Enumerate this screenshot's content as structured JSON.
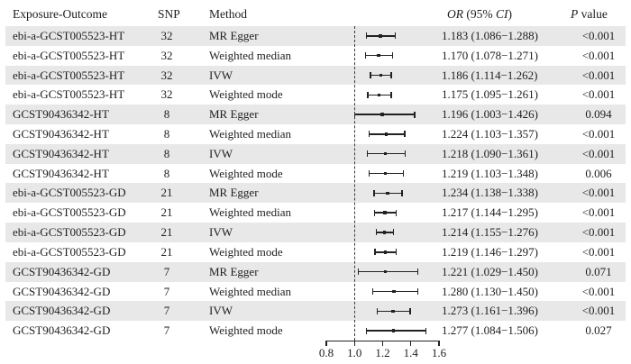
{
  "colors": {
    "band": "#e8e8e8",
    "ink": "#1e1e1e",
    "plot": "#222222"
  },
  "header": {
    "exposure": "Exposure-Outcome",
    "snp": "SNP",
    "method": "Method",
    "or_parts": [
      {
        "t": "OR",
        "i": 1
      },
      {
        "t": " (95% ",
        "i": 0
      },
      {
        "t": "CI",
        "i": 1
      },
      {
        "t": ")",
        "i": 0
      }
    ],
    "p_parts": [
      {
        "t": "P",
        "i": 1
      },
      {
        "t": " value",
        "i": 0
      }
    ]
  },
  "chart_data": {
    "type": "scatter",
    "variant": "forest-plot",
    "title": "",
    "xlabel": "",
    "x_axis": {
      "min": 0.8,
      "max": 1.6,
      "ticks": [
        0.8,
        1.0,
        1.2,
        1.4,
        1.6
      ],
      "reference_line": 1.0
    },
    "rows": [
      {
        "exposure": "ebi-a-GCST005523-HT",
        "snp": "32",
        "method": "MR Egger",
        "or": 1.183,
        "ci_low": 1.086,
        "ci_high": 1.288,
        "or_ci_text": "1.183 (1.086−1.288)",
        "p_value": "<0.001"
      },
      {
        "exposure": "ebi-a-GCST005523-HT",
        "snp": "32",
        "method": "Weighted median",
        "or": 1.17,
        "ci_low": 1.078,
        "ci_high": 1.271,
        "or_ci_text": "1.170 (1.078−1.271)",
        "p_value": "<0.001"
      },
      {
        "exposure": "ebi-a-GCST005523-HT",
        "snp": "32",
        "method": "IVW",
        "or": 1.186,
        "ci_low": 1.114,
        "ci_high": 1.262,
        "or_ci_text": "1.186 (1.114−1.262)",
        "p_value": "<0.001"
      },
      {
        "exposure": "ebi-a-GCST005523-HT",
        "snp": "32",
        "method": "Weighted mode",
        "or": 1.175,
        "ci_low": 1.095,
        "ci_high": 1.261,
        "or_ci_text": "1.175 (1.095−1.261)",
        "p_value": "<0.001"
      },
      {
        "exposure": "GCST90436342-HT",
        "snp": "8",
        "method": "MR Egger",
        "or": 1.196,
        "ci_low": 1.003,
        "ci_high": 1.426,
        "or_ci_text": "1.196 (1.003−1.426)",
        "p_value": "0.094"
      },
      {
        "exposure": "GCST90436342-HT",
        "snp": "8",
        "method": "Weighted median",
        "or": 1.224,
        "ci_low": 1.103,
        "ci_high": 1.357,
        "or_ci_text": "1.224 (1.103−1.357)",
        "p_value": "<0.001"
      },
      {
        "exposure": "GCST90436342-HT",
        "snp": "8",
        "method": "IVW",
        "or": 1.218,
        "ci_low": 1.09,
        "ci_high": 1.361,
        "or_ci_text": "1.218 (1.090−1.361)",
        "p_value": "<0.001"
      },
      {
        "exposure": "GCST90436342-HT",
        "snp": "8",
        "method": "Weighted mode",
        "or": 1.219,
        "ci_low": 1.103,
        "ci_high": 1.348,
        "or_ci_text": "1.219 (1.103−1.348)",
        "p_value": "0.006"
      },
      {
        "exposure": "ebi-a-GCST005523-GD",
        "snp": "21",
        "method": "MR Egger",
        "or": 1.234,
        "ci_low": 1.138,
        "ci_high": 1.338,
        "or_ci_text": "1.234 (1.138−1.338)",
        "p_value": "<0.001"
      },
      {
        "exposure": "ebi-a-GCST005523-GD",
        "snp": "21",
        "method": "Weighted median",
        "or": 1.217,
        "ci_low": 1.144,
        "ci_high": 1.295,
        "or_ci_text": "1.217 (1.144−1.295)",
        "p_value": "<0.001"
      },
      {
        "exposure": "ebi-a-GCST005523-GD",
        "snp": "21",
        "method": "IVW",
        "or": 1.214,
        "ci_low": 1.155,
        "ci_high": 1.276,
        "or_ci_text": "1.214 (1.155−1.276)",
        "p_value": "<0.001"
      },
      {
        "exposure": "ebi-a-GCST005523-GD",
        "snp": "21",
        "method": "Weighted mode",
        "or": 1.219,
        "ci_low": 1.146,
        "ci_high": 1.297,
        "or_ci_text": "1.219 (1.146−1.297)",
        "p_value": "<0.001"
      },
      {
        "exposure": "GCST90436342-GD",
        "snp": "7",
        "method": "MR Egger",
        "or": 1.221,
        "ci_low": 1.029,
        "ci_high": 1.45,
        "or_ci_text": "1.221 (1.029−1.450)",
        "p_value": "0.071"
      },
      {
        "exposure": "GCST90436342-GD",
        "snp": "7",
        "method": "Weighted median",
        "or": 1.28,
        "ci_low": 1.13,
        "ci_high": 1.45,
        "or_ci_text": "1.280 (1.130−1.450)",
        "p_value": "<0.001"
      },
      {
        "exposure": "GCST90436342-GD",
        "snp": "7",
        "method": "IVW",
        "or": 1.273,
        "ci_low": 1.161,
        "ci_high": 1.396,
        "or_ci_text": "1.273 (1.161−1.396)",
        "p_value": "<0.001"
      },
      {
        "exposure": "GCST90436342-GD",
        "snp": "7",
        "method": "Weighted mode",
        "or": 1.277,
        "ci_low": 1.084,
        "ci_high": 1.506,
        "or_ci_text": "1.277 (1.084−1.506)",
        "p_value": "0.027"
      }
    ]
  }
}
